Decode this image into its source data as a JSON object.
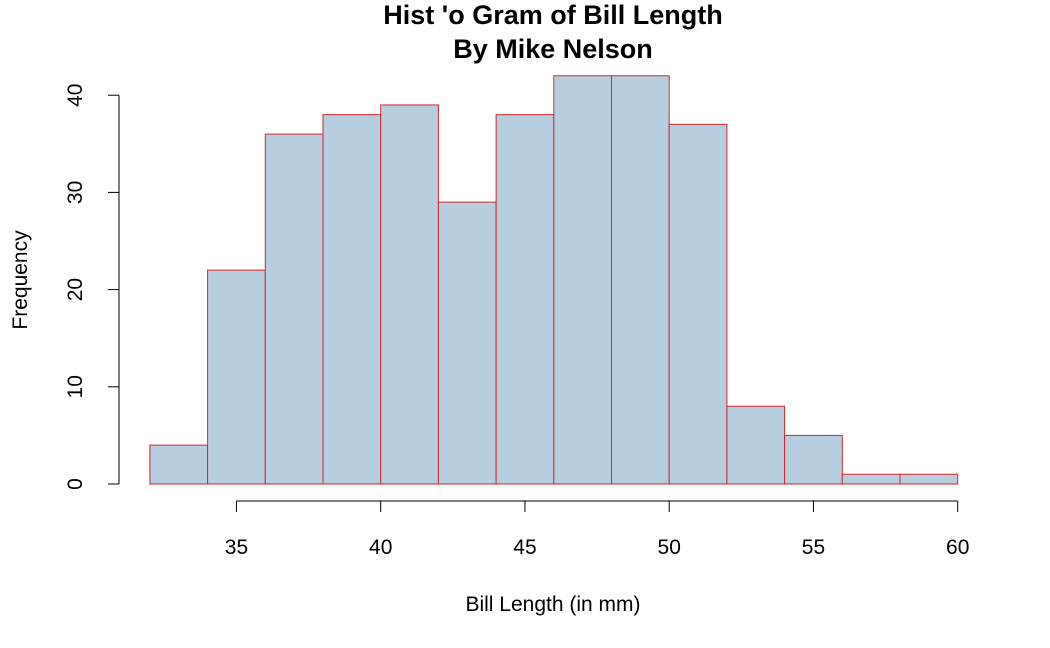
{
  "chart_data": {
    "type": "bar",
    "title": "Hist 'o Gram of Bill Length",
    "subtitle": "By Mike Nelson",
    "xlabel": "Bill Length (in mm)",
    "ylabel": "Frequency",
    "bin_edges": [
      32,
      34,
      36,
      38,
      40,
      42,
      44,
      46,
      48,
      50,
      52,
      54,
      56,
      58,
      60
    ],
    "values": [
      4,
      22,
      36,
      38,
      39,
      29,
      38,
      42,
      42,
      37,
      8,
      5,
      1,
      1
    ],
    "xticks": [
      35,
      40,
      45,
      50,
      55,
      60
    ],
    "yticks": [
      0,
      10,
      20,
      30,
      40
    ],
    "xlim": [
      32,
      60
    ],
    "ylim": [
      0,
      42
    ],
    "grid": false,
    "legend": "none",
    "bar_fill": "#b7cde0",
    "bar_border": "#d0282b"
  }
}
